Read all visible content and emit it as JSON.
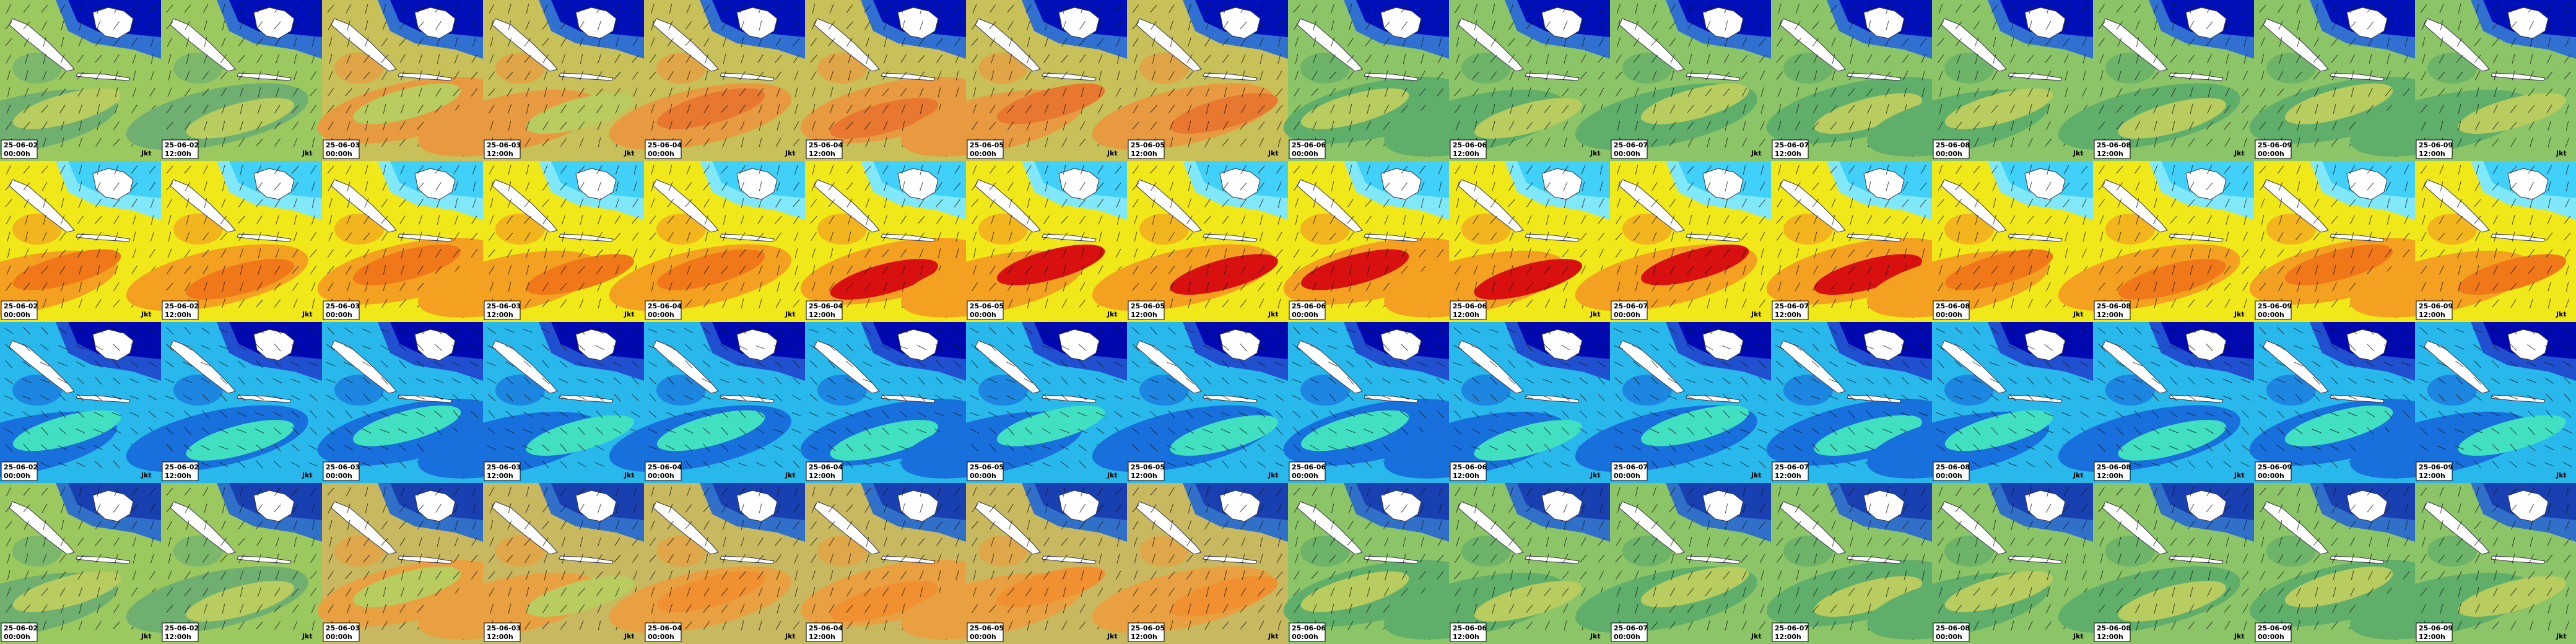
{
  "place": "Jkt",
  "columns": [
    {
      "date": "25-06-02",
      "time": "00:00h"
    },
    {
      "date": "25-06-02",
      "time": "12:00h"
    },
    {
      "date": "25-06-03",
      "time": "00:00h"
    },
    {
      "date": "25-06-03",
      "time": "12:00h"
    },
    {
      "date": "25-06-04",
      "time": "00:00h"
    },
    {
      "date": "25-06-04",
      "time": "12:00h"
    },
    {
      "date": "25-06-05",
      "time": "00:00h"
    },
    {
      "date": "25-06-05",
      "time": "12:00h"
    },
    {
      "date": "25-06-06",
      "time": "00:00h"
    },
    {
      "date": "25-06-06",
      "time": "12:00h"
    },
    {
      "date": "25-06-07",
      "time": "00:00h"
    },
    {
      "date": "25-06-07",
      "time": "12:00h"
    },
    {
      "date": "25-06-08",
      "time": "00:00h"
    },
    {
      "date": "25-06-08",
      "time": "12:00h"
    },
    {
      "date": "25-06-09",
      "time": "00:00h"
    },
    {
      "date": "25-06-09",
      "time": "12:00h"
    }
  ]
}
